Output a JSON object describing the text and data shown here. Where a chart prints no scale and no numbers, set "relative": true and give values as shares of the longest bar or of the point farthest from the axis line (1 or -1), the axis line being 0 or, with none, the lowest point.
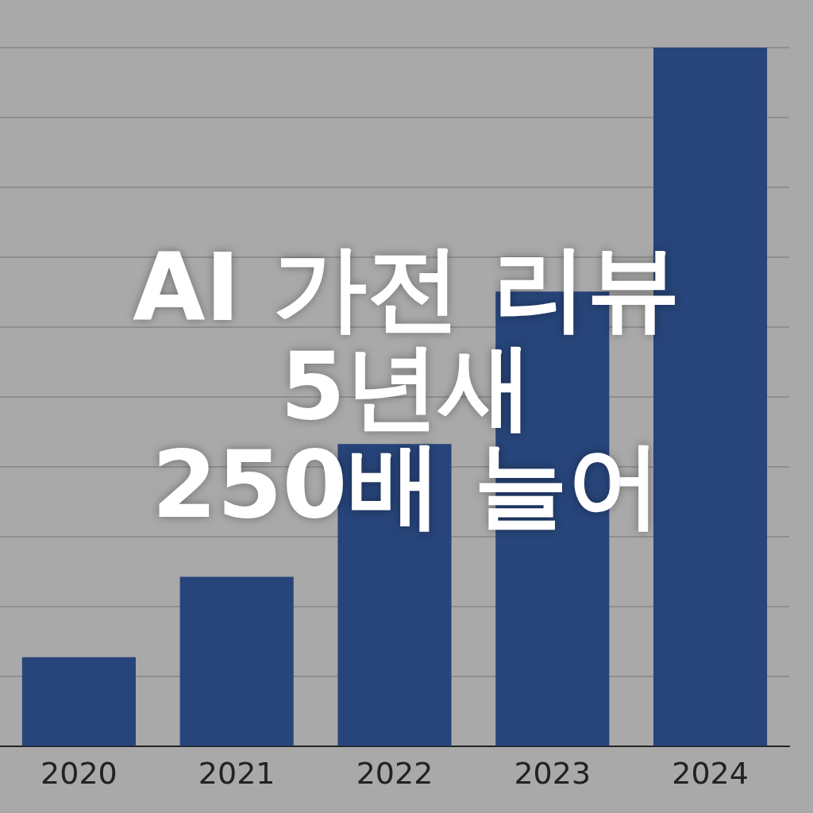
{
  "chart_data": {
    "type": "bar",
    "title": "AI 가전 리뷰\n5년새\n250배 늘어",
    "categories": [
      "2020",
      "2021",
      "2022",
      "2023",
      "2024"
    ],
    "values": [
      0.128,
      0.243,
      0.433,
      0.651,
      1
    ],
    "color": "#27457a",
    "relative": true,
    "grid": "y"
  }
}
